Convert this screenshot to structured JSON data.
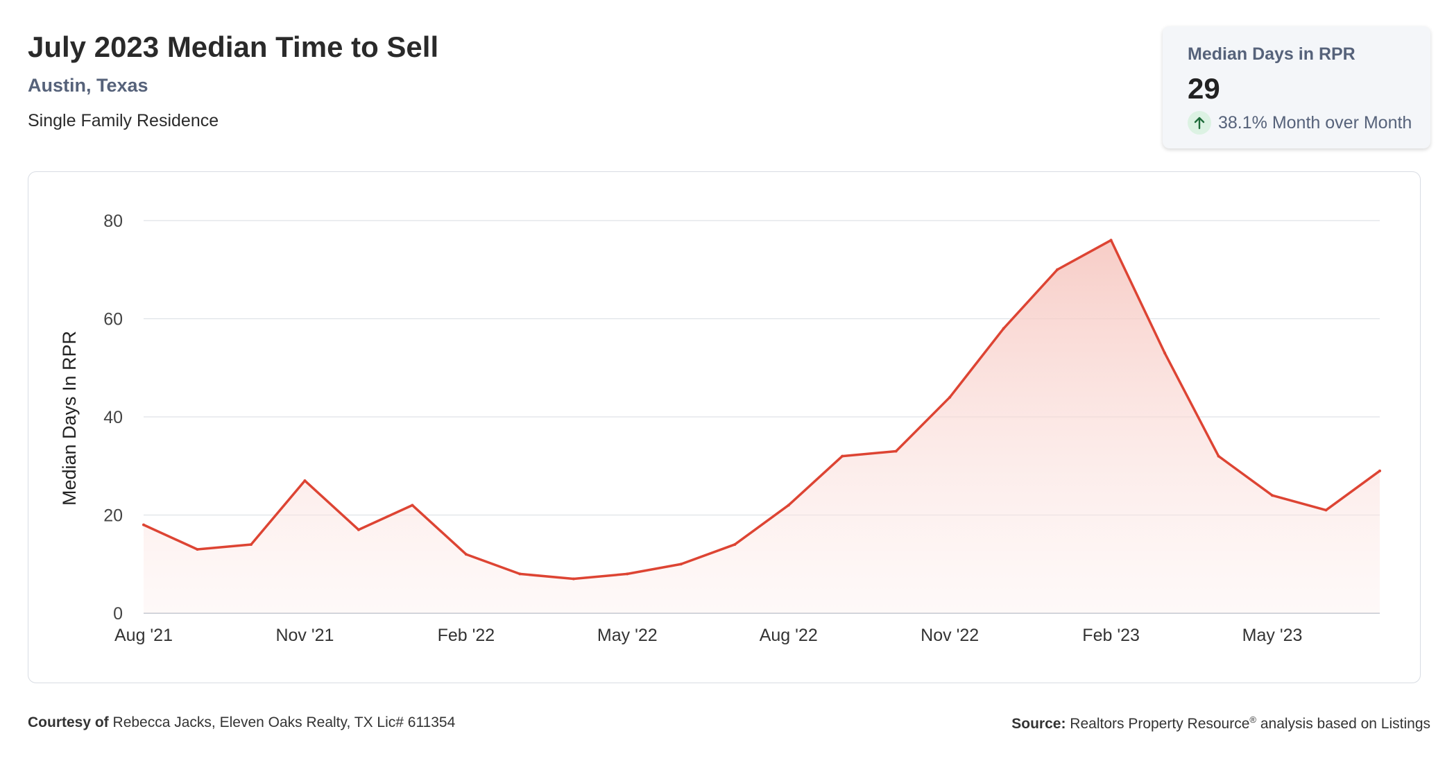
{
  "header": {
    "title": "July 2023 Median Time to Sell",
    "location": "Austin, Texas",
    "property_type": "Single Family Residence"
  },
  "stat_card": {
    "label": "Median Days in RPR",
    "value": "29",
    "change": "38.1% Month over Month",
    "change_icon": "arrow-up-icon"
  },
  "footer": {
    "courtesy_label": "Courtesy of",
    "courtesy_text": "Rebecca Jacks, Eleven Oaks Realty, TX Lic# 611354",
    "source_label": "Source:",
    "source_text": "Realtors Property Resource",
    "source_mark": "®",
    "source_suffix": "analysis based on Listings"
  },
  "chart_data": {
    "type": "area",
    "ylabel": "Median Days In RPR",
    "ylim": [
      0,
      80
    ],
    "yticks": [
      0,
      20,
      40,
      60,
      80
    ],
    "grid": true,
    "x": [
      "Aug '21",
      "Sep '21",
      "Oct '21",
      "Nov '21",
      "Dec '21",
      "Jan '22",
      "Feb '22",
      "Mar '22",
      "Apr '22",
      "May '22",
      "Jun '22",
      "Jul '22",
      "Aug '22",
      "Sep '22",
      "Oct '22",
      "Nov '22",
      "Dec '22",
      "Jan '23",
      "Feb '23",
      "Mar '23",
      "Apr '23",
      "May '23",
      "Jun '23",
      "Jul '23"
    ],
    "xtick_labels": [
      "Aug '21",
      "Nov '21",
      "Feb '22",
      "May '22",
      "Aug '22",
      "Nov '22",
      "Feb '23",
      "May '23"
    ],
    "values": [
      18,
      13,
      14,
      27,
      17,
      22,
      12,
      8,
      7,
      8,
      10,
      14,
      22,
      32,
      33,
      44,
      58,
      70,
      76,
      53,
      32,
      24,
      21,
      29
    ],
    "colors": {
      "line": "#dd4433",
      "fill": "#f6c9c3"
    }
  }
}
